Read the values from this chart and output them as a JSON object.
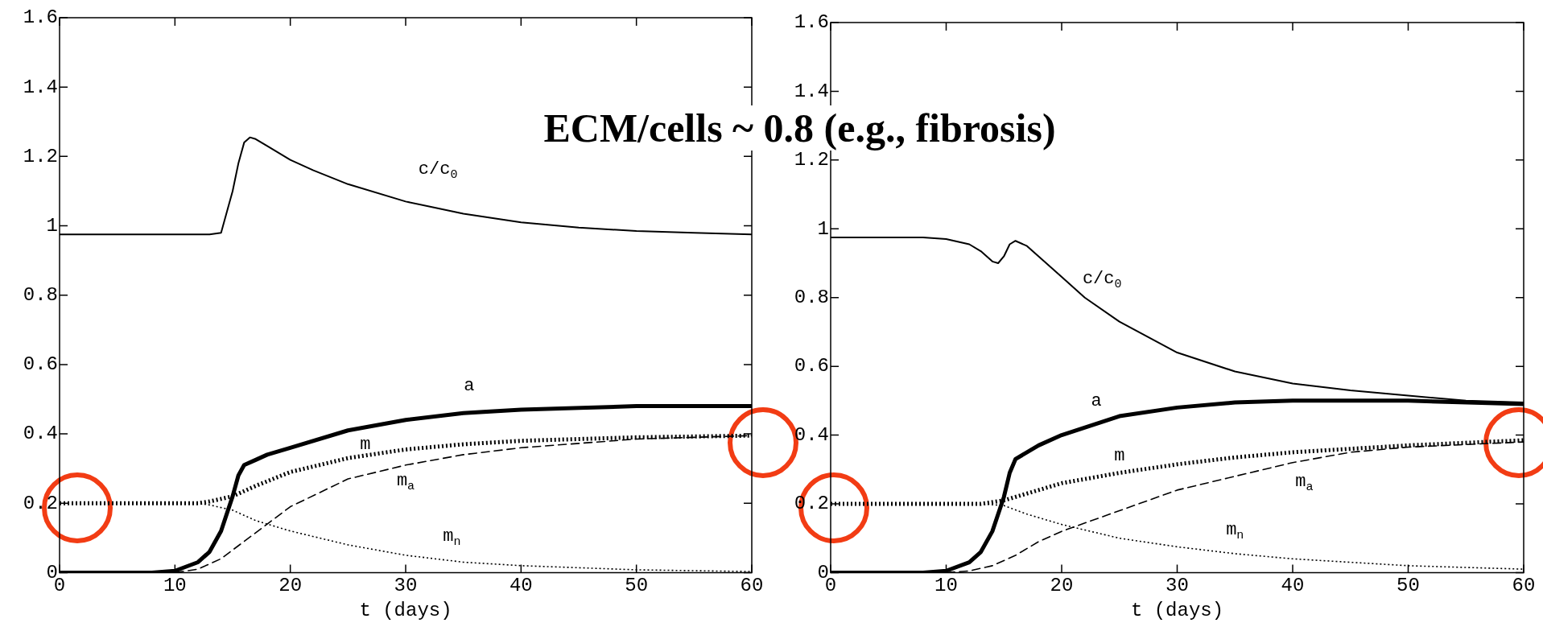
{
  "chart_data": [
    {
      "type": "line",
      "title": "ECM/cells ~ 0.8 (e.g., fibrosis)",
      "xlabel": "t (days)",
      "xlim": [
        0,
        60
      ],
      "xticks": [
        0,
        10,
        20,
        30,
        40,
        50,
        60
      ],
      "ylim": [
        0,
        1.6
      ],
      "yticks": [
        0,
        0.2,
        0.4,
        0.6,
        0.8,
        1,
        1.2,
        1.4,
        1.6
      ],
      "grid": false,
      "marker": "none",
      "series": [
        {
          "name": "c/c$_{0}$",
          "color": "#000000",
          "line_style": "solid",
          "x": [
            0,
            5,
            10,
            13,
            14,
            15,
            15.5,
            16,
            16.5,
            17,
            18,
            20,
            22,
            25,
            30,
            35,
            40,
            45,
            50,
            55,
            60
          ],
          "values": [
            0.975,
            0.975,
            0.975,
            0.975,
            0.98,
            1.1,
            1.18,
            1.24,
            1.255,
            1.25,
            1.23,
            1.19,
            1.16,
            1.12,
            1.07,
            1.035,
            1.01,
            0.995,
            0.985,
            0.98,
            0.975
          ]
        },
        {
          "name": "a",
          "color": "#000000",
          "line_style": "solid",
          "x": [
            0,
            8,
            10,
            12,
            13,
            14,
            15,
            15.5,
            16,
            17,
            18,
            20,
            25,
            30,
            35,
            40,
            50,
            60
          ],
          "values": [
            0,
            0,
            0.005,
            0.03,
            0.06,
            0.12,
            0.22,
            0.28,
            0.31,
            0.325,
            0.34,
            0.36,
            0.41,
            0.44,
            0.46,
            0.47,
            0.48,
            0.48
          ]
        },
        {
          "name": "m",
          "color": "#000000",
          "line_style": "dotted",
          "x": [
            0,
            12,
            13,
            15,
            17,
            20,
            25,
            30,
            35,
            40,
            50,
            60
          ],
          "values": [
            0.2,
            0.2,
            0.205,
            0.22,
            0.25,
            0.29,
            0.33,
            0.355,
            0.37,
            0.38,
            0.39,
            0.395
          ]
        },
        {
          "name": "m$_{a}$",
          "color": "#000000",
          "line_style": "dashed",
          "x": [
            0,
            10,
            12,
            14,
            16,
            18,
            20,
            25,
            30,
            35,
            40,
            50,
            60
          ],
          "values": [
            0,
            0,
            0.01,
            0.04,
            0.09,
            0.14,
            0.19,
            0.27,
            0.31,
            0.34,
            0.36,
            0.385,
            0.395
          ]
        },
        {
          "name": "m$_{n}$",
          "color": "#000000",
          "line_style": "dotted",
          "x": [
            0,
            12,
            13,
            15,
            17,
            20,
            25,
            30,
            35,
            40,
            50,
            60
          ],
          "values": [
            0.2,
            0.2,
            0.195,
            0.18,
            0.15,
            0.12,
            0.08,
            0.05,
            0.03,
            0.02,
            0.008,
            0.003
          ]
        }
      ]
    },
    {
      "type": "line",
      "xlabel": "t (days)",
      "xlim": [
        0,
        60
      ],
      "xticks": [
        0,
        10,
        20,
        30,
        40,
        50,
        60
      ],
      "ylim": [
        0,
        1.6
      ],
      "yticks": [
        0,
        0.2,
        0.4,
        0.6,
        0.8,
        1,
        1.2,
        1.4,
        1.6
      ],
      "grid": false,
      "marker": "none",
      "series": [
        {
          "name": "c/c$_{0}$",
          "color": "#000000",
          "line_style": "solid",
          "x": [
            0,
            8,
            10,
            12,
            13,
            14,
            14.5,
            15,
            15.5,
            16,
            17,
            18,
            20,
            22,
            25,
            30,
            35,
            40,
            45,
            50,
            55,
            60
          ],
          "values": [
            0.975,
            0.975,
            0.97,
            0.955,
            0.935,
            0.905,
            0.9,
            0.92,
            0.955,
            0.965,
            0.95,
            0.92,
            0.86,
            0.8,
            0.73,
            0.64,
            0.585,
            0.55,
            0.53,
            0.515,
            0.5,
            0.495
          ]
        },
        {
          "name": "a",
          "color": "#000000",
          "line_style": "solid",
          "x": [
            0,
            8,
            10,
            12,
            13,
            14,
            15,
            15.5,
            16,
            17,
            18,
            20,
            25,
            30,
            35,
            40,
            50,
            60
          ],
          "values": [
            0,
            0,
            0.005,
            0.03,
            0.06,
            0.12,
            0.22,
            0.29,
            0.33,
            0.35,
            0.37,
            0.4,
            0.455,
            0.48,
            0.495,
            0.5,
            0.5,
            0.49
          ]
        },
        {
          "name": "m",
          "color": "#000000",
          "line_style": "dotted",
          "x": [
            0,
            13,
            15,
            17,
            20,
            25,
            30,
            35,
            40,
            50,
            60
          ],
          "values": [
            0.2,
            0.2,
            0.21,
            0.23,
            0.26,
            0.29,
            0.315,
            0.335,
            0.35,
            0.37,
            0.385
          ]
        },
        {
          "name": "m$_{a}$",
          "color": "#000000",
          "line_style": "dashed",
          "x": [
            0,
            10,
            12,
            14,
            16,
            18,
            20,
            25,
            30,
            35,
            40,
            45,
            50,
            60
          ],
          "values": [
            0,
            0,
            0.005,
            0.02,
            0.05,
            0.09,
            0.12,
            0.18,
            0.24,
            0.28,
            0.32,
            0.35,
            0.365,
            0.38
          ]
        },
        {
          "name": "m$_{n}$",
          "color": "#000000",
          "line_style": "dotted",
          "x": [
            0,
            13,
            15,
            17,
            20,
            25,
            30,
            35,
            40,
            50,
            60
          ],
          "values": [
            0.2,
            0.2,
            0.195,
            0.17,
            0.14,
            0.1,
            0.075,
            0.055,
            0.04,
            0.02,
            0.01
          ]
        }
      ]
    }
  ]
}
